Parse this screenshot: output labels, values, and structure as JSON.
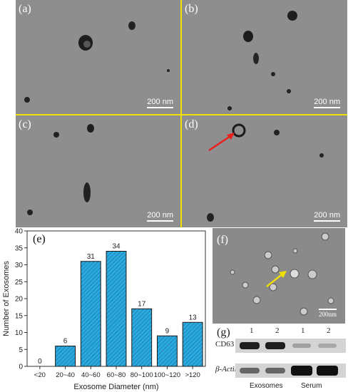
{
  "panels": {
    "a": {
      "label": "(a)",
      "scale": "200 nm"
    },
    "b": {
      "label": "(b)",
      "scale": "200 nm"
    },
    "c": {
      "label": "(c)",
      "scale": "200 nm"
    },
    "d": {
      "label": "(d)",
      "scale": "200 nm"
    },
    "e": {
      "label": "(e)"
    },
    "f": {
      "label": "(f)",
      "scale": "200nm"
    },
    "g": {
      "label": "(g)"
    }
  },
  "chart_data": {
    "type": "bar",
    "categories": [
      "<20",
      "20~40",
      "40~60",
      "60~80",
      "80~100",
      "100~120",
      ">120"
    ],
    "values": [
      0,
      6,
      31,
      34,
      17,
      9,
      13
    ],
    "xlabel": "Exosome Diameter (nm)",
    "ylabel": "Number of Exosomes",
    "ylim": [
      0,
      40
    ],
    "yticks": [
      0,
      5,
      10,
      15,
      20,
      25,
      30,
      35,
      40
    ],
    "bar_color": "#29abe2",
    "hatch": true
  },
  "western_blot": {
    "lane_numbers": [
      "1",
      "2",
      "1",
      "2"
    ],
    "rows": [
      "CD63",
      "β-Actin"
    ],
    "groups": [
      "Exosomes",
      "Serum"
    ]
  }
}
